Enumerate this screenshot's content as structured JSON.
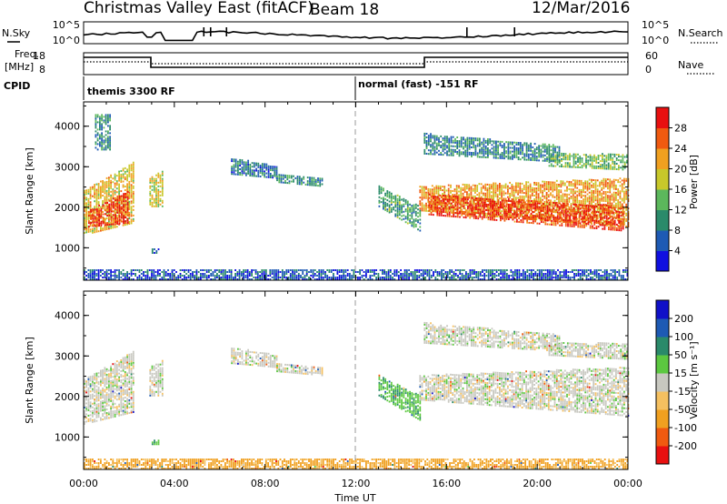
{
  "header": {
    "title": "Christmas Valley East (fitACF)",
    "beam": "Beam 18",
    "date": "12/Mar/2016"
  },
  "top_panels": {
    "nsky_label": "N.Sky",
    "nsearch_label": "N.Search",
    "freq_label_line1": "Freq.",
    "freq_label_line2": "[MHz]",
    "nave_label": "Nave",
    "cpid_label": "CPID",
    "left_ticks": [
      "10^5",
      "10^0"
    ],
    "right_ticks": [
      "10^5",
      "10^0"
    ],
    "freq_ticks": [
      "18",
      "8"
    ],
    "nave_ticks": [
      "60",
      "0"
    ],
    "cpid_segment_1": "themis 3300 RF",
    "cpid_segment_2": "normal (fast) -151 RF"
  },
  "axes": {
    "x_label": "Time UT",
    "x_ticks": [
      "00:00",
      "04:00",
      "08:00",
      "12:00",
      "16:00",
      "20:00",
      "00:00"
    ],
    "y_label": "Slant Range [km]",
    "y_ticks": [
      "1000",
      "2000",
      "3000",
      "4000"
    ]
  },
  "colorbars": {
    "power_label": "Power [dB]",
    "power_ticks": [
      "4",
      "8",
      "12",
      "16",
      "20",
      "24",
      "28"
    ],
    "velocity_label": "Velocity [m s⁻¹]",
    "velocity_ticks": [
      "-200",
      "-100",
      "-50",
      "-15",
      "15",
      "50",
      "100",
      "200"
    ],
    "power_colors": [
      "#1010e0",
      "#1e5ab4",
      "#2a8a6a",
      "#5cb85c",
      "#c8c82a",
      "#f0a020",
      "#f05a10",
      "#e81010"
    ],
    "velocity_colors": [
      "#e81010",
      "#f05a10",
      "#f0a020",
      "#f5c060",
      "#c8c8c0",
      "#5cc840",
      "#2a8a6a",
      "#1e5ab4",
      "#1010c8"
    ]
  },
  "chart_data": [
    {
      "type": "heatmap",
      "title": "Power",
      "x_unit": "hours UT",
      "xlim": [
        0,
        24
      ],
      "ylim": [
        200,
        4600
      ],
      "ylabel": "Slant Range [km]",
      "colorbar_label": "Power [dB]",
      "clim": [
        0,
        32
      ],
      "regions": [
        {
          "x": [
            0.0,
            2.2
          ],
          "y_low": [
            1300,
            1600
          ],
          "y_high": [
            2400,
            3100
          ],
          "value": 20
        },
        {
          "x": [
            0.2,
            2.0
          ],
          "y_low": [
            1500,
            1600
          ],
          "y_high": [
            1900,
            2400
          ],
          "value": 28
        },
        {
          "x": [
            2.9,
            3.5
          ],
          "y_low": [
            2000,
            2000
          ],
          "y_high": [
            2700,
            2900
          ],
          "value": 18
        },
        {
          "x": [
            3.0,
            3.3
          ],
          "y_low": [
            850,
            850
          ],
          "y_high": [
            950,
            950
          ],
          "value": 8
        },
        {
          "x": [
            0.5,
            1.2
          ],
          "y_low": [
            3400,
            3400
          ],
          "y_high": [
            4300,
            4300
          ],
          "value": 10
        },
        {
          "x": [
            6.5,
            8.5
          ],
          "y_low": [
            2800,
            2700
          ],
          "y_high": [
            3200,
            3000
          ],
          "value": 8
        },
        {
          "x": [
            8.5,
            10.5
          ],
          "y_low": [
            2600,
            2500
          ],
          "y_high": [
            2800,
            2700
          ],
          "value": 10
        },
        {
          "x": [
            13.0,
            14.8
          ],
          "y_low": [
            2000,
            1400
          ],
          "y_high": [
            2500,
            2000
          ],
          "value": 12
        },
        {
          "x": [
            14.8,
            24.0
          ],
          "y_low": [
            1900,
            1500
          ],
          "y_high": [
            2500,
            2700
          ],
          "value": 22
        },
        {
          "x": [
            15.2,
            23.8
          ],
          "y_low": [
            1800,
            1400
          ],
          "y_high": [
            2300,
            2000
          ],
          "value": 28
        },
        {
          "x": [
            15.0,
            21.0
          ],
          "y_low": [
            3300,
            3100
          ],
          "y_high": [
            3800,
            3500
          ],
          "value": 9
        },
        {
          "x": [
            20.5,
            24.0
          ],
          "y_low": [
            3000,
            2900
          ],
          "y_high": [
            3300,
            3300
          ],
          "value": 14
        },
        {
          "x": [
            0.0,
            24.0
          ],
          "y_low": [
            200,
            200
          ],
          "y_high": [
            450,
            450
          ],
          "value": 6
        }
      ]
    },
    {
      "type": "heatmap",
      "title": "Velocity",
      "x_unit": "hours UT",
      "xlim": [
        0,
        24
      ],
      "ylim": [
        200,
        4600
      ],
      "ylabel": "Slant Range [km]",
      "colorbar_label": "Velocity [m s⁻¹]",
      "clim": [
        -250,
        250
      ],
      "regions": [
        {
          "x": [
            0.0,
            2.2
          ],
          "y_low": [
            1300,
            1600
          ],
          "y_high": [
            2400,
            3100
          ],
          "value": 0
        },
        {
          "x": [
            2.9,
            3.5
          ],
          "y_low": [
            2000,
            2000
          ],
          "y_high": [
            2700,
            2900
          ],
          "value": 0
        },
        {
          "x": [
            3.0,
            3.3
          ],
          "y_low": [
            800,
            800
          ],
          "y_high": [
            900,
            900
          ],
          "value": 40
        },
        {
          "x": [
            6.5,
            8.5
          ],
          "y_low": [
            2800,
            2700
          ],
          "y_high": [
            3200,
            3000
          ],
          "value": 0
        },
        {
          "x": [
            8.5,
            10.5
          ],
          "y_low": [
            2600,
            2500
          ],
          "y_high": [
            2800,
            2700
          ],
          "value": 0
        },
        {
          "x": [
            13.0,
            14.8
          ],
          "y_low": [
            2000,
            1400
          ],
          "y_high": [
            2500,
            2000
          ],
          "value": 40
        },
        {
          "x": [
            14.8,
            24.0
          ],
          "y_low": [
            1900,
            1500
          ],
          "y_high": [
            2500,
            2700
          ],
          "value": 0
        },
        {
          "x": [
            15.0,
            21.0
          ],
          "y_low": [
            3300,
            3100
          ],
          "y_high": [
            3800,
            3500
          ],
          "value": 0
        },
        {
          "x": [
            20.5,
            24.0
          ],
          "y_low": [
            3000,
            2900
          ],
          "y_high": [
            3300,
            3300
          ],
          "value": 0
        },
        {
          "x": [
            0.0,
            24.0
          ],
          "y_low": [
            200,
            200
          ],
          "y_high": [
            450,
            450
          ],
          "value": -60
        }
      ]
    }
  ]
}
